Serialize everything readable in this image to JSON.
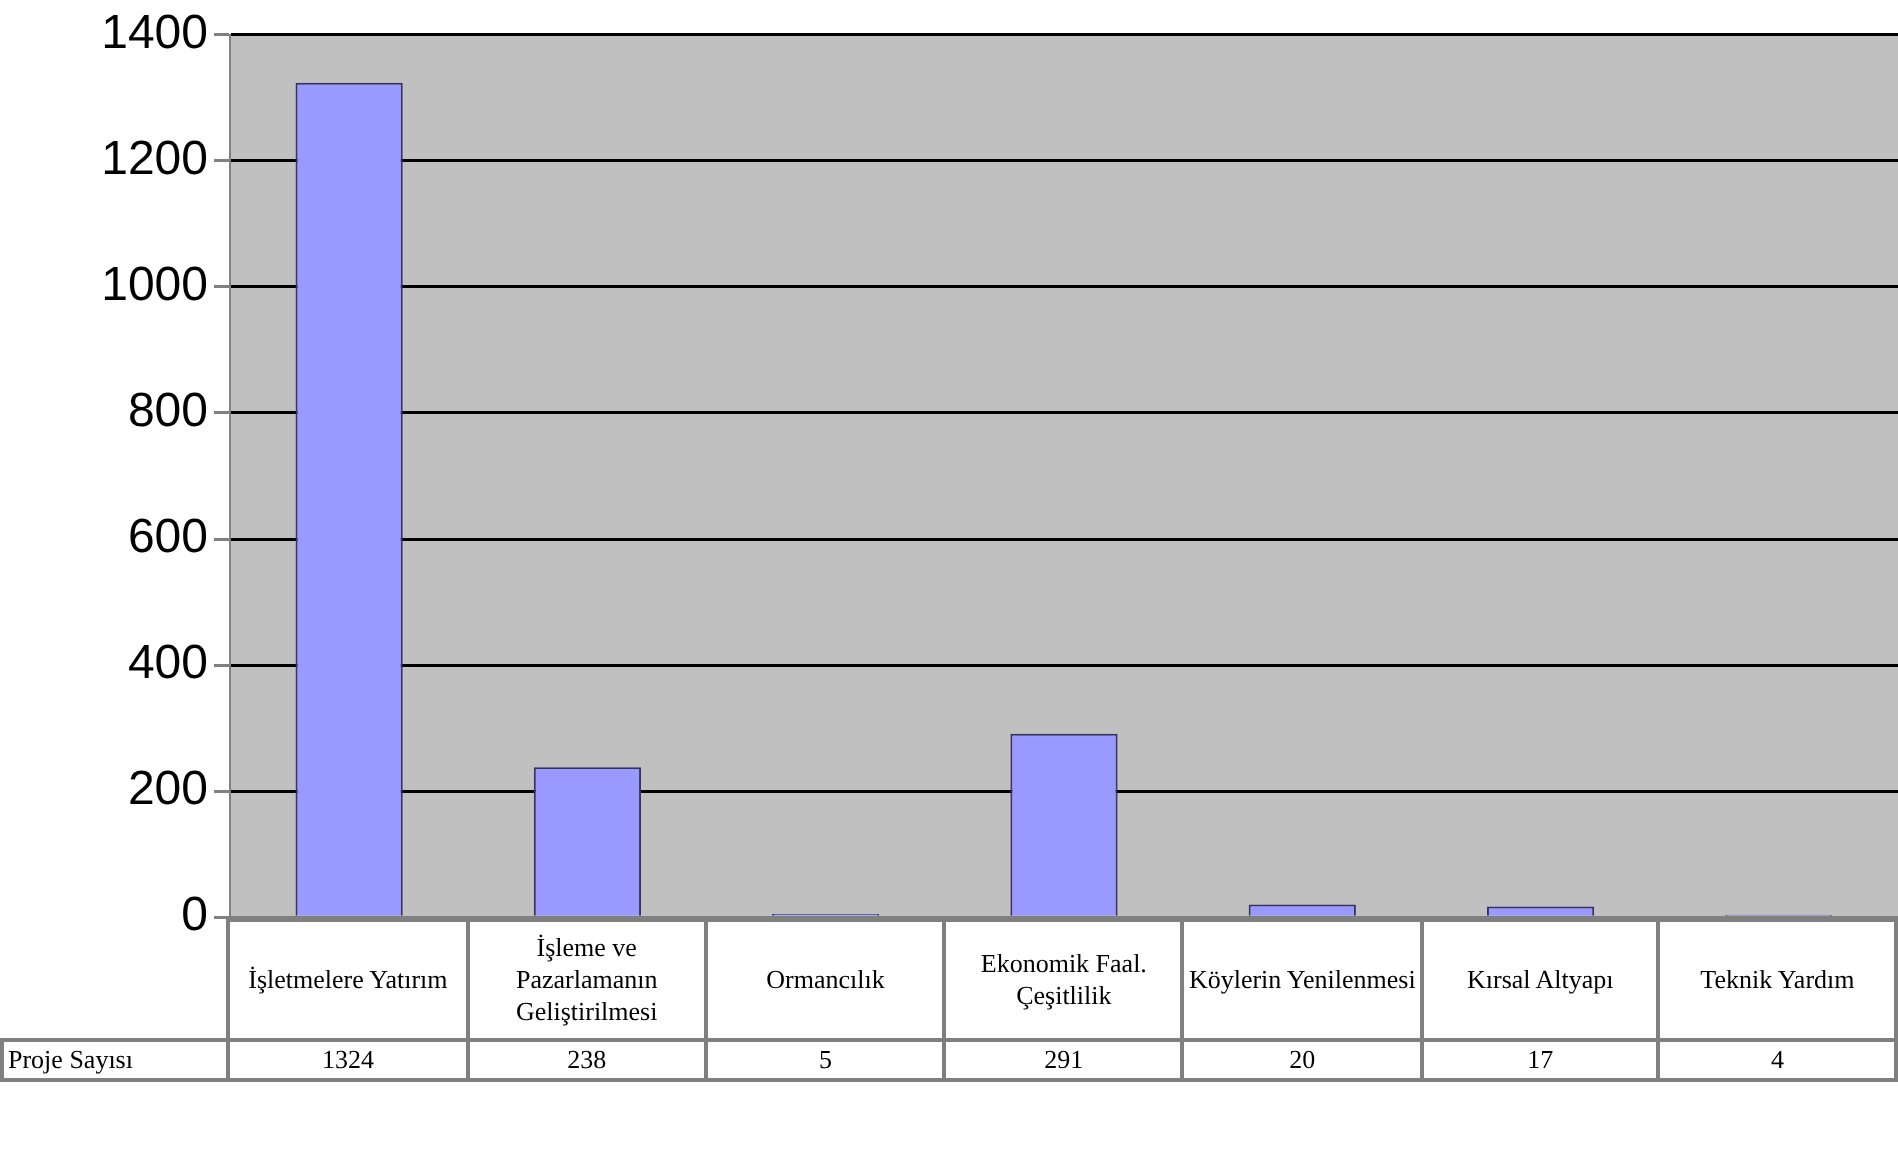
{
  "chart_data": {
    "type": "bar",
    "categories": [
      "İşletmelere Yatırım",
      "İşleme ve Pazarlamanın Geliştirilmesi",
      "Ormancılık",
      "Ekonomik Faal. Çeşitlilik",
      "Köylerin Yenilenmesi",
      "Kırsal Altyapı",
      "Teknik Yardım"
    ],
    "series": [
      {
        "name": "Proje Sayısı",
        "color": "#9999ff",
        "values": [
          1324,
          238,
          5,
          291,
          20,
          17,
          4
        ]
      }
    ],
    "ylim": [
      0,
      1400
    ],
    "yticks": [
      0,
      200,
      400,
      600,
      800,
      1000,
      1200,
      1400
    ],
    "grid": "y",
    "data_labels": true,
    "legend": false
  }
}
